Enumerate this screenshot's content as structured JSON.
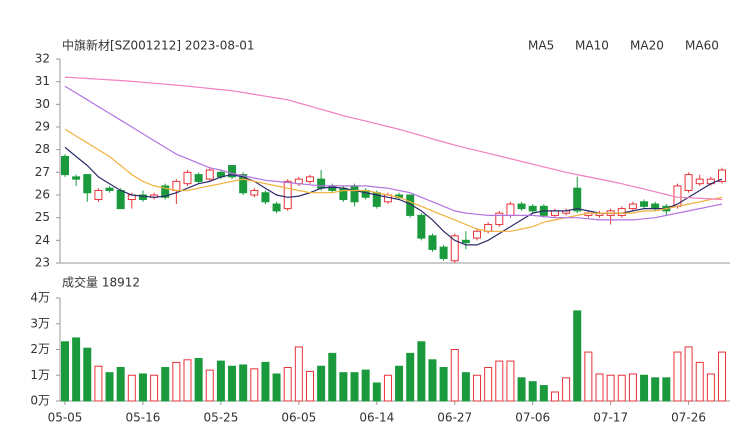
{
  "chart_data": {
    "type": "candlestick",
    "title": "中旗新材[SZ001212] 2023-08-01",
    "up_color": "#e8333a",
    "down_color": "#1a9a3c",
    "categories": [
      "05-05",
      null,
      null,
      null,
      null,
      null,
      null,
      "05-16",
      null,
      null,
      null,
      null,
      null,
      null,
      "05-25",
      null,
      null,
      null,
      null,
      null,
      null,
      "06-05",
      null,
      null,
      null,
      null,
      null,
      null,
      "06-14",
      null,
      null,
      null,
      null,
      null,
      null,
      "06-27",
      null,
      null,
      null,
      null,
      null,
      null,
      "07-06",
      null,
      null,
      null,
      null,
      null,
      null,
      "07-17",
      null,
      null,
      null,
      null,
      null,
      null,
      "07-26",
      null,
      null,
      null
    ],
    "open": [
      27.7,
      26.8,
      26.9,
      25.8,
      26.3,
      26.2,
      25.8,
      26.0,
      25.9,
      26.4,
      26.2,
      26.5,
      26.9,
      26.7,
      27.0,
      27.3,
      26.9,
      26.0,
      26.1,
      25.6,
      25.4,
      26.5,
      26.6,
      26.7,
      26.4,
      26.3,
      26.4,
      26.2,
      26.1,
      25.7,
      26.0,
      26.0,
      25.1,
      24.2,
      23.7,
      23.1,
      24.0,
      24.1,
      24.4,
      24.7,
      25.1,
      25.6,
      25.5,
      25.5,
      25.1,
      25.2,
      26.3,
      25.1,
      25.1,
      25.1,
      25.1,
      25.4,
      25.7,
      25.6,
      25.5,
      25.5,
      26.2,
      26.5,
      26.5,
      26.6
    ],
    "high": [
      27.8,
      26.9,
      26.9,
      26.3,
      26.4,
      26.3,
      26.1,
      26.2,
      26.1,
      26.5,
      26.7,
      27.1,
      27.0,
      27.2,
      27.1,
      27.3,
      27.0,
      26.3,
      26.2,
      25.7,
      26.7,
      26.8,
      26.9,
      27.1,
      26.5,
      26.4,
      26.5,
      26.3,
      26.2,
      26.1,
      26.1,
      26.0,
      25.2,
      24.3,
      23.8,
      24.3,
      24.4,
      24.5,
      24.8,
      25.3,
      25.7,
      25.7,
      25.6,
      25.6,
      25.4,
      25.4,
      26.8,
      25.3,
      25.3,
      25.4,
      25.5,
      25.7,
      25.8,
      25.7,
      25.6,
      26.5,
      27.0,
      26.9,
      26.8,
      27.2
    ],
    "low": [
      26.8,
      26.4,
      25.7,
      25.7,
      26.1,
      25.4,
      25.4,
      25.7,
      25.8,
      25.8,
      25.6,
      26.4,
      26.5,
      26.6,
      26.7,
      26.7,
      26.0,
      25.9,
      25.6,
      25.2,
      25.3,
      26.4,
      26.5,
      26.2,
      26.1,
      25.7,
      25.5,
      25.8,
      25.4,
      25.6,
      25.8,
      25.0,
      24.0,
      23.5,
      23.1,
      23.0,
      23.6,
      24.0,
      24.3,
      24.6,
      25.0,
      25.3,
      25.2,
      25.0,
      25.0,
      25.1,
      25.2,
      25.0,
      25.0,
      24.7,
      25.0,
      25.3,
      25.4,
      25.3,
      25.1,
      25.4,
      26.1,
      26.4,
      26.4,
      26.5
    ],
    "close": [
      26.9,
      26.7,
      26.1,
      26.2,
      26.2,
      25.4,
      26.0,
      25.8,
      26.0,
      25.9,
      26.6,
      27.0,
      26.6,
      27.1,
      26.8,
      26.8,
      26.1,
      26.2,
      25.7,
      25.3,
      26.6,
      26.7,
      26.8,
      26.3,
      26.2,
      25.8,
      25.7,
      25.9,
      25.5,
      26.0,
      25.9,
      25.1,
      24.1,
      23.6,
      23.2,
      24.2,
      23.9,
      24.4,
      24.7,
      25.2,
      25.6,
      25.4,
      25.3,
      25.1,
      25.3,
      25.3,
      25.3,
      25.2,
      25.2,
      25.3,
      25.4,
      25.6,
      25.5,
      25.4,
      25.3,
      26.4,
      26.9,
      26.7,
      26.7,
      27.1
    ],
    "ylim": [
      23,
      32
    ],
    "yticks": [
      23,
      24,
      25,
      26,
      27,
      28,
      29,
      30,
      31,
      32
    ],
    "series": [
      {
        "name": "MA5",
        "color": "#2c2c6a",
        "values": [
          28.1,
          27.7,
          27.3,
          26.8,
          26.5,
          26.2,
          26.0,
          25.95,
          25.9,
          25.95,
          26.1,
          26.3,
          26.5,
          26.6,
          26.8,
          26.9,
          26.8,
          26.6,
          26.3,
          26.0,
          25.9,
          25.95,
          26.1,
          26.3,
          26.35,
          26.3,
          26.2,
          26.1,
          26.0,
          25.9,
          25.8,
          25.6,
          25.3,
          24.9,
          24.4,
          24.0,
          23.8,
          23.8,
          24.0,
          24.3,
          24.6,
          24.9,
          25.2,
          25.3,
          25.3,
          25.3,
          25.4,
          25.3,
          25.2,
          25.2,
          25.2,
          25.3,
          25.4,
          25.4,
          25.4,
          25.6,
          25.9,
          26.2,
          26.5,
          26.7
        ]
      },
      {
        "name": "MA10",
        "color": "#f2b13c",
        "values": [
          28.9,
          28.6,
          28.3,
          28.0,
          27.7,
          27.3,
          26.9,
          26.6,
          26.4,
          26.3,
          26.2,
          26.2,
          26.3,
          26.4,
          26.5,
          26.6,
          26.7,
          26.6,
          26.5,
          26.4,
          26.3,
          26.2,
          26.1,
          26.1,
          26.1,
          26.2,
          26.2,
          26.2,
          26.1,
          26.0,
          25.9,
          25.7,
          25.5,
          25.3,
          25.1,
          24.9,
          24.7,
          24.5,
          24.4,
          24.4,
          24.4,
          24.5,
          24.6,
          24.8,
          24.9,
          25.0,
          25.1,
          25.2,
          25.2,
          25.2,
          25.2,
          25.2,
          25.3,
          25.3,
          25.4,
          25.5,
          25.6,
          25.7,
          25.8,
          25.9
        ]
      },
      {
        "name": "MA20",
        "color": "#b274e0",
        "values": [
          30.8,
          30.5,
          30.2,
          29.9,
          29.6,
          29.3,
          29.0,
          28.7,
          28.4,
          28.1,
          27.8,
          27.6,
          27.4,
          27.2,
          27.1,
          26.95,
          26.85,
          26.75,
          26.65,
          26.6,
          26.55,
          26.5,
          26.45,
          26.4,
          26.4,
          26.4,
          26.4,
          26.4,
          26.35,
          26.3,
          26.2,
          26.1,
          25.9,
          25.7,
          25.5,
          25.3,
          25.2,
          25.15,
          25.1,
          25.1,
          25.1,
          25.1,
          25.1,
          25.05,
          25.0,
          25.0,
          25.0,
          24.95,
          24.9,
          24.9,
          24.9,
          24.9,
          24.95,
          25.0,
          25.1,
          25.2,
          25.3,
          25.4,
          25.5,
          25.6
        ]
      },
      {
        "name": "MA60",
        "color": "#f27fbf",
        "values": [
          31.2,
          31.17,
          31.14,
          31.11,
          31.08,
          31.05,
          31.01,
          30.97,
          30.93,
          30.89,
          30.85,
          30.8,
          30.75,
          30.7,
          30.65,
          30.6,
          30.52,
          30.44,
          30.36,
          30.28,
          30.2,
          30.06,
          29.92,
          29.78,
          29.64,
          29.5,
          29.38,
          29.26,
          29.14,
          29.02,
          28.9,
          28.76,
          28.62,
          28.48,
          28.34,
          28.2,
          28.08,
          27.96,
          27.84,
          27.72,
          27.6,
          27.48,
          27.36,
          27.24,
          27.12,
          27.0,
          26.9,
          26.8,
          26.7,
          26.6,
          26.5,
          26.38,
          26.26,
          26.14,
          26.02,
          25.9,
          25.88,
          25.85,
          25.83,
          25.8
        ]
      }
    ],
    "volume": {
      "title": "成交量 18912",
      "values": [
        2.3,
        2.45,
        2.05,
        1.35,
        1.1,
        1.3,
        1.0,
        1.05,
        1.0,
        1.3,
        1.5,
        1.6,
        1.65,
        1.2,
        1.55,
        1.35,
        1.4,
        1.25,
        1.5,
        1.05,
        1.3,
        2.1,
        1.15,
        1.35,
        1.85,
        1.1,
        1.1,
        1.2,
        0.7,
        1.0,
        1.35,
        1.85,
        2.3,
        1.6,
        1.3,
        2.0,
        1.1,
        1.0,
        1.3,
        1.55,
        1.55,
        0.9,
        0.75,
        0.6,
        0.35,
        0.9,
        3.5,
        1.9,
        1.05,
        1.0,
        1.0,
        1.05,
        1.0,
        0.9,
        0.9,
        1.9,
        2.1,
        1.5,
        1.05,
        1.9
      ],
      "ylim": [
        0,
        4
      ],
      "yticks": [
        {
          "value": 0,
          "label": "0万"
        },
        {
          "value": 1,
          "label": "1万"
        },
        {
          "value": 2,
          "label": "2万"
        },
        {
          "value": 3,
          "label": "3万"
        },
        {
          "value": 4,
          "label": "4万"
        }
      ]
    }
  }
}
